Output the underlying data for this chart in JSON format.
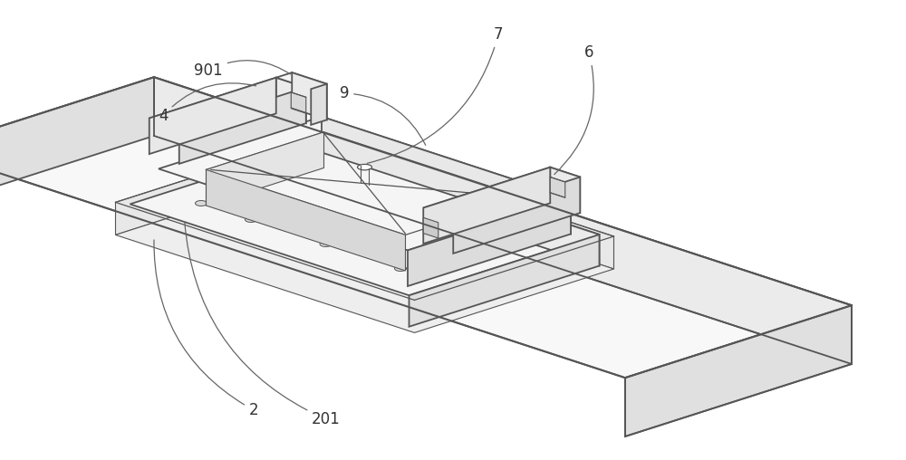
{
  "bg_color": "#ffffff",
  "line_color": "#555555",
  "line_width": 1.3,
  "label_color": "#333333",
  "label_fontsize": 12,
  "face_top": "#f8f8f8",
  "face_front": "#ebebeb",
  "face_right": "#e0e0e0",
  "face_dark": "#d5d5d5",
  "face_inner": "#f0f0f0"
}
